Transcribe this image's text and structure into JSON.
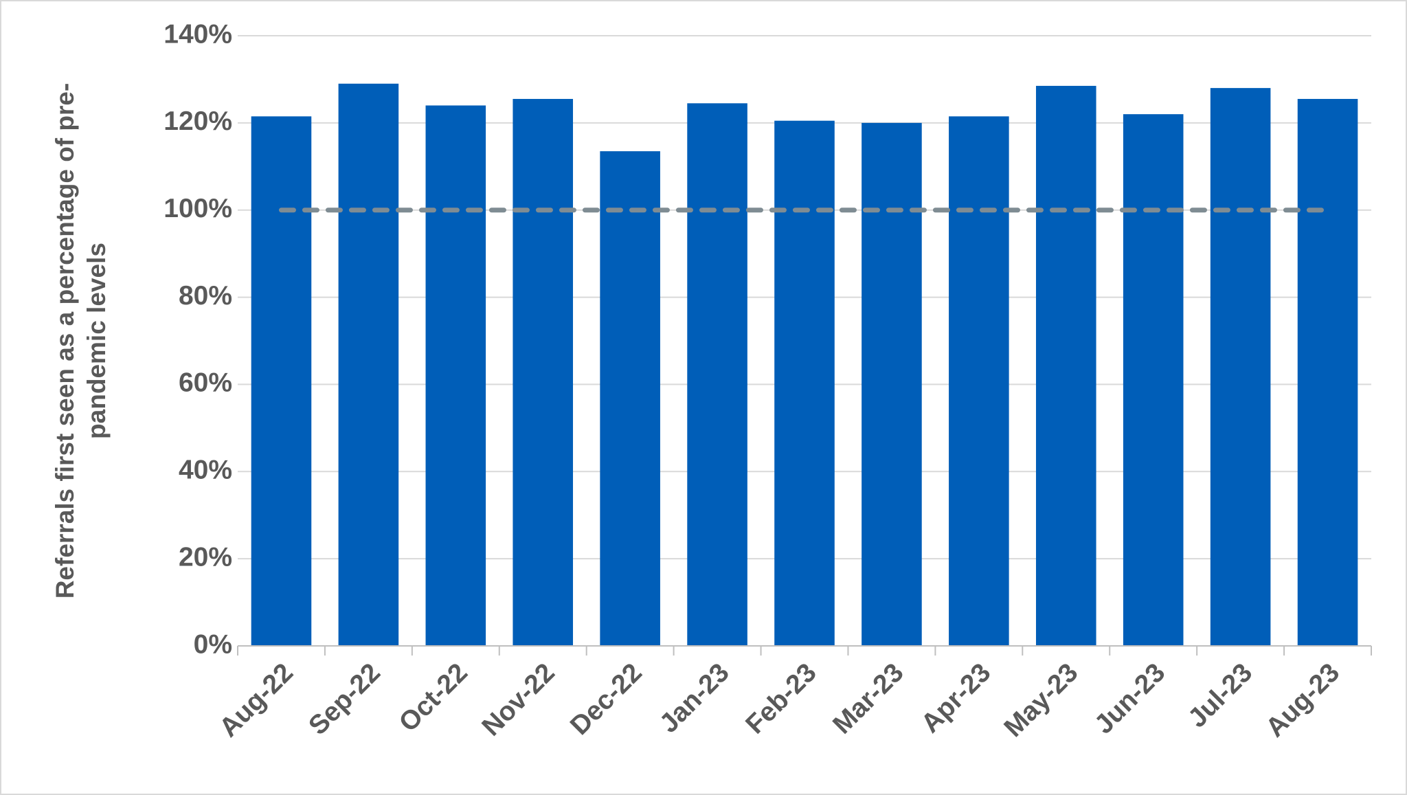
{
  "chart_data": {
    "type": "bar",
    "ylabel": "Referrals first seen as a percentage of pre-pandemic levels",
    "categories": [
      "Aug-22",
      "Sep-22",
      "Oct-22",
      "Nov-22",
      "Dec-22",
      "Jan-23",
      "Feb-23",
      "Mar-23",
      "Apr-23",
      "May-23",
      "Jun-23",
      "Jul-23",
      "Aug-23"
    ],
    "values": [
      121.5,
      129,
      124,
      125.5,
      113.5,
      124.5,
      120.5,
      120,
      121.5,
      128.5,
      122,
      128,
      125.5
    ],
    "color": "#005eb8",
    "reference_line": {
      "value": 100,
      "color": "#7f8c93",
      "style": "dashed"
    },
    "ylim": [
      0,
      140
    ],
    "yticks": [
      {
        "value": 0,
        "label": "0%"
      },
      {
        "value": 20,
        "label": "20%"
      },
      {
        "value": 40,
        "label": "40%"
      },
      {
        "value": 60,
        "label": "60%"
      },
      {
        "value": 80,
        "label": "80%"
      },
      {
        "value": 100,
        "label": "100%"
      },
      {
        "value": 120,
        "label": "120%"
      },
      {
        "value": 140,
        "label": "140%"
      }
    ],
    "grid": true
  }
}
